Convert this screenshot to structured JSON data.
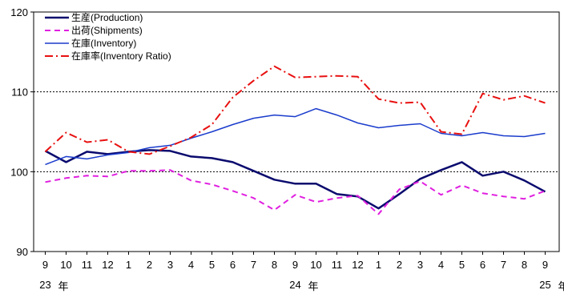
{
  "chart_data": {
    "type": "line",
    "ylim": [
      90,
      120
    ],
    "y_ticks": [
      "90",
      "100",
      "110",
      "120"
    ],
    "gridlines": [
      100,
      110
    ],
    "x_labels": [
      "9",
      "10",
      "11",
      "12",
      "1",
      "2",
      "3",
      "4",
      "5",
      "6",
      "7",
      "8",
      "9",
      "10",
      "11",
      "12",
      "1",
      "2",
      "3",
      "4",
      "5",
      "6",
      "7",
      "8",
      "9"
    ],
    "year_markers": [
      {
        "index": 0,
        "label": "23",
        "suffix": "年"
      },
      {
        "index": 12,
        "label": "24",
        "suffix": "年"
      },
      {
        "index": 24,
        "label": "25",
        "suffix": "年"
      }
    ],
    "legend_position": "top-left",
    "series": [
      {
        "name": "生産(Production)",
        "color": "#0a0a6e",
        "dash": "solid",
        "width": 2.5,
        "values": [
          102.6,
          101.2,
          102.5,
          102.2,
          102.5,
          102.7,
          102.6,
          101.9,
          101.7,
          101.2,
          100.1,
          99.0,
          98.5,
          98.5,
          97.2,
          96.9,
          95.4,
          97.2,
          99.1,
          100.2,
          101.2,
          99.5,
          100.0,
          98.9,
          97.5
        ]
      },
      {
        "name": "出荷(Shipments)",
        "color": "#e020e0",
        "dash": "dash",
        "width": 2,
        "values": [
          98.7,
          99.2,
          99.5,
          99.4,
          100.1,
          100.1,
          100.2,
          98.9,
          98.4,
          97.6,
          96.7,
          95.2,
          97.1,
          96.2,
          96.7,
          97.0,
          94.7,
          97.8,
          98.8,
          97.1,
          98.3,
          97.3,
          96.9,
          96.6,
          97.6
        ]
      },
      {
        "name": "在庫(Inventory)",
        "color": "#1a3ccc",
        "dash": "solid",
        "width": 1.5,
        "values": [
          100.9,
          101.9,
          101.6,
          102.1,
          102.4,
          103.0,
          103.3,
          104.2,
          105.0,
          105.9,
          106.7,
          107.1,
          106.9,
          107.9,
          107.1,
          106.1,
          105.5,
          105.8,
          106.0,
          104.8,
          104.5,
          104.9,
          104.5,
          104.4,
          104.8
        ]
      },
      {
        "name": "在庫率(Inventory Ratio)",
        "color": "#e81010",
        "dash": "dashdot",
        "width": 2,
        "values": [
          102.5,
          104.9,
          103.7,
          104.0,
          102.5,
          102.2,
          103.2,
          104.3,
          105.9,
          109.3,
          111.4,
          113.2,
          111.8,
          111.9,
          112.0,
          111.9,
          109.1,
          108.6,
          108.7,
          105.0,
          104.7,
          109.8,
          109.0,
          109.5,
          108.6
        ]
      }
    ]
  }
}
